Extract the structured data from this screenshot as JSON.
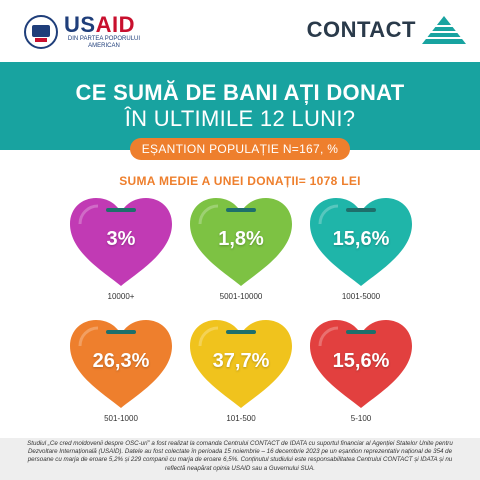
{
  "header": {
    "usaid_word_us": "US",
    "usaid_word_aid": "AID",
    "usaid_subtitle": "DIN PARTEA POPORULUI AMERICAN",
    "contact_word": "CONTACT",
    "colors": {
      "teal": "#18a3a0",
      "orange": "#ee7f2d",
      "usaid_blue": "#1f3e7a",
      "usaid_red": "#c8102e"
    }
  },
  "title_line1": "CE SUMĂ DE BANI AȚI DONAT",
  "title_line2": "ÎN ULTIMILE 12 LUNI?",
  "sample_label": "EȘANTION POPULAȚIE N=167, %",
  "average_label": "SUMA MEDIE A UNEI DONAȚII= 1078 LEI",
  "chart_data": {
    "type": "bar",
    "title": "CE SUMĂ DE BANI AȚI DONAT ÎN ULTIMILE 12 LUNI?",
    "categories": [
      "10000+",
      "5001-10000",
      "1001-5000",
      "501-1000",
      "101-500",
      "5-100"
    ],
    "values": [
      3,
      1.8,
      15.6,
      26.3,
      37.7,
      15.6
    ],
    "value_labels": [
      "3%",
      "1,8%",
      "15,6%",
      "26,3%",
      "37,7%",
      "15,6%"
    ],
    "colors": [
      "#c13ab4",
      "#7dc243",
      "#1fb5a9",
      "#ee7f2d",
      "#f0c31d",
      "#e2403f"
    ],
    "unit": "%"
  },
  "footer": {
    "text": "Studiul „Ce cred moldovenii despre OSC-uri” a fost realizat la comanda Centrului CONTACT de IDATA cu suportul financiar al Agenției Statelor Unite pentru Dezvoltare Internațională (USAID). Datele au fost colectate în perioada 15 noiembrie – 16 decembrie 2023 pe un eșantion reprezentativ național de 354 de persoane cu marja de eroare 5,2% și 229 companii cu marja de eroare 6,5%. Conținutul studiului este responsabilitatea Centrului CONTACT și IDATA și nu reflectă neapărat opinia USAID sau a Guvernului SUA."
  }
}
